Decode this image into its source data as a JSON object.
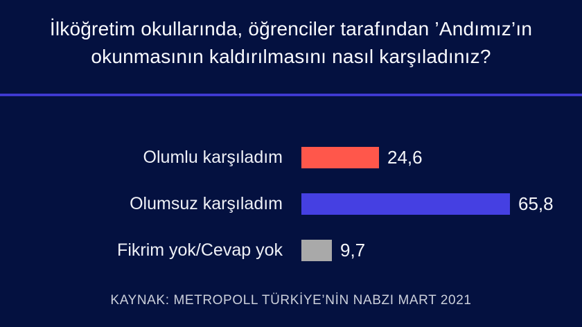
{
  "title": "İlköğretim okullarında, öğrenciler tarafından ’Andımız’ın okunmasının kaldırılmasını nasıl karşıladınız?",
  "source": "KAYNAK: METROPOLL TÜRKİYE’NİN NABZI MART 2021",
  "colors": {
    "background": "#041140",
    "divider_blue": "#4b45e8",
    "positive_bar": "#ff574b",
    "negative_bar": "#4540e2",
    "neutral_bar": "#a9a9a9",
    "text": "#fafbff"
  },
  "chart_data": {
    "type": "bar",
    "orientation": "horizontal",
    "title": "İlköğretim okullarında, öğrenciler tarafından ’Andımız’ın okunmasının kaldırılmasını nasıl karşıladınız?",
    "categories": [
      "Olumlu karşıladım",
      "Olumsuz karşıladım",
      "Fikrim yok/Cevap yok"
    ],
    "values": [
      24.6,
      65.8,
      9.7
    ],
    "value_labels": [
      "24,6",
      "65,8",
      "9,7"
    ],
    "bar_colors": [
      "#ff574b",
      "#4540e2",
      "#a9a9a9"
    ],
    "xlim": [
      0,
      90
    ],
    "grid": false,
    "legend": false,
    "source": "KAYNAK: METROPOLL TÜRKİYE’NİN NABZI MART 2021"
  }
}
